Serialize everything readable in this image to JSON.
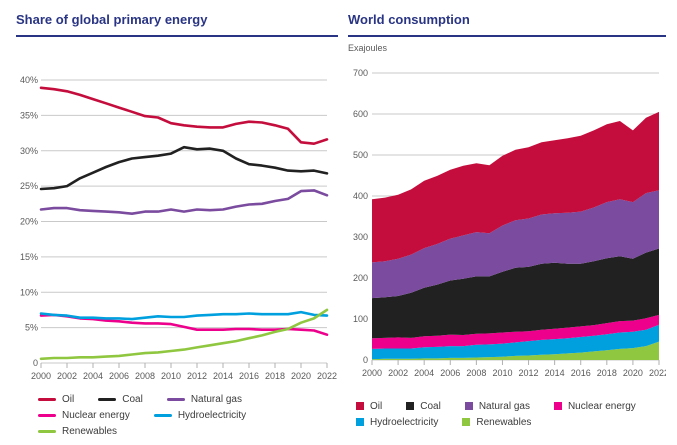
{
  "colors": {
    "title_navy": "#293584",
    "gridline": "#c9c9c9",
    "axis_tick": "#b0b0b0",
    "axis_label": "#5a5a5a",
    "legend_text": "#3c3c3c",
    "oil": "#c40d3c",
    "coal": "#212121",
    "natural_gas": "#7a4b9e",
    "nuclear": "#ec008c",
    "hydro": "#00a0df",
    "renewables": "#90c740"
  },
  "chart_data": [
    {
      "type": "line",
      "title": "Share of global primary energy",
      "ylim": [
        0,
        40
      ],
      "grid": true,
      "legend_position": "bottom",
      "yticks": [
        {
          "value": 40,
          "label": "40%"
        },
        {
          "value": 35,
          "label": "35%"
        },
        {
          "value": 30,
          "label": "30%"
        },
        {
          "value": 25,
          "label": "25%"
        },
        {
          "value": 20,
          "label": "20%"
        },
        {
          "value": 15,
          "label": "15%"
        },
        {
          "value": 10,
          "label": "10%"
        },
        {
          "value": 5,
          "label": "5%"
        },
        {
          "value": 0,
          "label": "0"
        }
      ],
      "years": [
        2000,
        2001,
        2002,
        2003,
        2004,
        2005,
        2006,
        2007,
        2008,
        2009,
        2010,
        2011,
        2012,
        2013,
        2014,
        2015,
        2016,
        2017,
        2018,
        2019,
        2020,
        2021,
        2022
      ],
      "x_ticks": [
        {
          "value": 2000,
          "label": "2000"
        },
        {
          "value": 2002,
          "label": "2002"
        },
        {
          "value": 2004,
          "label": "2004"
        },
        {
          "value": 2006,
          "label": "2006"
        },
        {
          "value": 2008,
          "label": "2008"
        },
        {
          "value": 2010,
          "label": "2010"
        },
        {
          "value": 2012,
          "label": "2012"
        },
        {
          "value": 2014,
          "label": "2014"
        },
        {
          "value": 2016,
          "label": "2016"
        },
        {
          "value": 2018,
          "label": "2018"
        },
        {
          "value": 2020,
          "label": "2020"
        },
        {
          "value": 2022,
          "label": "2022"
        }
      ],
      "series": [
        {
          "name": "Oil",
          "color": "#c40d3c",
          "values": [
            38.9,
            38.7,
            38.4,
            37.9,
            37.3,
            36.7,
            36.1,
            35.5,
            34.9,
            34.7,
            33.9,
            33.6,
            33.4,
            33.3,
            33.3,
            33.8,
            34.1,
            34.0,
            33.6,
            33.1,
            31.2,
            31.0,
            31.6
          ]
        },
        {
          "name": "Coal",
          "color": "#212121",
          "values": [
            24.6,
            24.7,
            25.0,
            26.1,
            26.9,
            27.7,
            28.4,
            28.9,
            29.1,
            29.3,
            29.6,
            30.5,
            30.2,
            30.3,
            30.0,
            28.9,
            28.1,
            27.9,
            27.6,
            27.2,
            27.1,
            27.2,
            26.8
          ]
        },
        {
          "name": "Natural gas",
          "color": "#7a4b9e",
          "values": [
            21.7,
            21.9,
            21.9,
            21.6,
            21.5,
            21.4,
            21.3,
            21.1,
            21.4,
            21.4,
            21.7,
            21.4,
            21.7,
            21.6,
            21.7,
            22.1,
            22.4,
            22.5,
            22.9,
            23.2,
            24.3,
            24.4,
            23.7
          ]
        },
        {
          "name": "Nuclear energy",
          "color": "#ec008c",
          "values": [
            6.7,
            6.8,
            6.6,
            6.3,
            6.2,
            6.0,
            5.9,
            5.7,
            5.6,
            5.6,
            5.5,
            5.1,
            4.7,
            4.7,
            4.7,
            4.8,
            4.8,
            4.7,
            4.7,
            4.8,
            4.7,
            4.6,
            4.0
          ]
        },
        {
          "name": "Hydroelectricity",
          "color": "#00a0df",
          "values": [
            7.0,
            6.8,
            6.7,
            6.4,
            6.4,
            6.3,
            6.3,
            6.2,
            6.4,
            6.6,
            6.5,
            6.5,
            6.7,
            6.8,
            6.9,
            6.9,
            7.0,
            6.9,
            6.9,
            6.9,
            7.2,
            6.8,
            6.7
          ]
        },
        {
          "name": "Renewables",
          "color": "#90c740",
          "values": [
            0.6,
            0.7,
            0.7,
            0.8,
            0.8,
            0.9,
            1.0,
            1.2,
            1.4,
            1.5,
            1.7,
            1.9,
            2.2,
            2.5,
            2.8,
            3.1,
            3.5,
            3.9,
            4.4,
            4.8,
            5.7,
            6.3,
            7.5
          ]
        }
      ],
      "legend_order": [
        "Oil",
        "Coal",
        "Natural gas",
        "Nuclear energy",
        "Hydroelectricity",
        "Renewables"
      ]
    },
    {
      "type": "area",
      "title": "World consumption",
      "unit_label": "Exajoules",
      "ylim": [
        0,
        700
      ],
      "grid": true,
      "legend_position": "bottom",
      "yticks": [
        {
          "value": 700,
          "label": "700"
        },
        {
          "value": 600,
          "label": "600"
        },
        {
          "value": 500,
          "label": "500"
        },
        {
          "value": 400,
          "label": "400"
        },
        {
          "value": 300,
          "label": "300"
        },
        {
          "value": 200,
          "label": "200"
        },
        {
          "value": 100,
          "label": "100"
        },
        {
          "value": 0,
          "label": "0"
        }
      ],
      "years": [
        2000,
        2001,
        2002,
        2003,
        2004,
        2005,
        2006,
        2007,
        2008,
        2009,
        2010,
        2011,
        2012,
        2013,
        2014,
        2015,
        2016,
        2017,
        2018,
        2019,
        2020,
        2021,
        2022
      ],
      "x_ticks": [
        {
          "value": 2000,
          "label": "2000"
        },
        {
          "value": 2002,
          "label": "2002"
        },
        {
          "value": 2004,
          "label": "2004"
        },
        {
          "value": 2006,
          "label": "2006"
        },
        {
          "value": 2008,
          "label": "2008"
        },
        {
          "value": 2010,
          "label": "2010"
        },
        {
          "value": 2012,
          "label": "2012"
        },
        {
          "value": 2014,
          "label": "2014"
        },
        {
          "value": 2016,
          "label": "2016"
        },
        {
          "value": 2018,
          "label": "2018"
        },
        {
          "value": 2020,
          "label": "2020"
        },
        {
          "value": 2022,
          "label": "2022"
        }
      ],
      "stack_order_note": "series listed bottom-to-top of stack",
      "series": [
        {
          "name": "Renewables",
          "color": "#90c740",
          "values": [
            2,
            3,
            3,
            3,
            4,
            4,
            5,
            5,
            6,
            7,
            8,
            10,
            11,
            13,
            14,
            16,
            18,
            21,
            24,
            27,
            29,
            34,
            45
          ]
        },
        {
          "name": "Hydroelectricity",
          "color": "#00a0df",
          "values": [
            25,
            25,
            25,
            25,
            27,
            28,
            29,
            29,
            31,
            31,
            32,
            33,
            35,
            36,
            37,
            37,
            38,
            38,
            39,
            40,
            40,
            40,
            41
          ]
        },
        {
          "name": "Nuclear energy",
          "color": "#ec008c",
          "values": [
            26,
            26,
            27,
            26,
            27,
            27,
            28,
            27,
            27,
            27,
            27,
            26,
            24,
            25,
            25,
            26,
            26,
            26,
            27,
            28,
            27,
            28,
            24
          ]
        },
        {
          "name": "Coal",
          "color": "#212121",
          "values": [
            98,
            99,
            101,
            110,
            118,
            125,
            132,
            137,
            140,
            139,
            148,
            156,
            157,
            161,
            161,
            156,
            153,
            156,
            158,
            158,
            151,
            160,
            162
          ]
        },
        {
          "name": "Natural gas",
          "color": "#7a4b9e",
          "values": [
            87,
            88,
            91,
            93,
            97,
            99,
            102,
            106,
            108,
            105,
            113,
            116,
            118,
            120,
            121,
            124,
            127,
            131,
            137,
            139,
            138,
            145,
            142
          ]
        },
        {
          "name": "Oil",
          "color": "#c40d3c",
          "values": [
            154,
            155,
            156,
            159,
            164,
            166,
            168,
            170,
            168,
            166,
            170,
            172,
            174,
            176,
            178,
            182,
            185,
            188,
            190,
            191,
            175,
            184,
            191
          ]
        }
      ],
      "legend_order": [
        "Oil",
        "Coal",
        "Natural gas",
        "Nuclear energy",
        "Hydroelectricity",
        "Renewables"
      ]
    }
  ]
}
